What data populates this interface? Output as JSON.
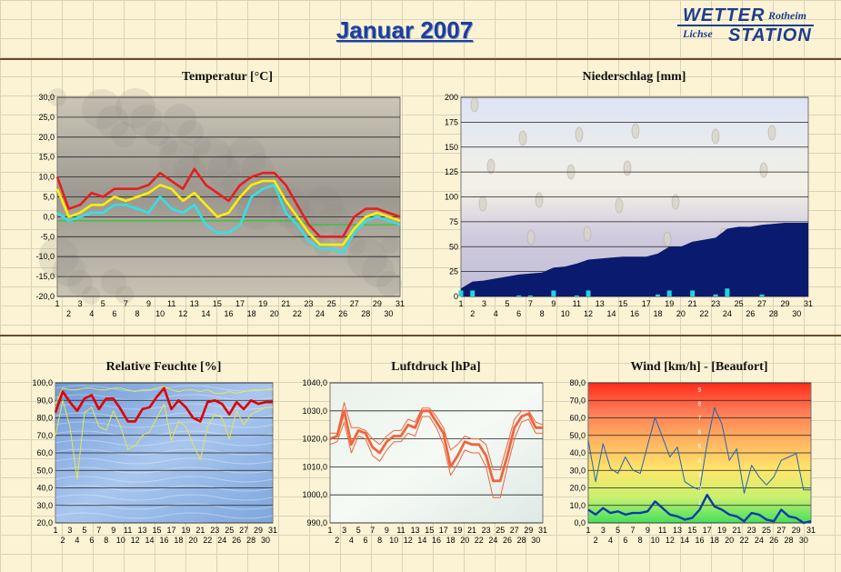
{
  "header": {
    "title": "Januar 2007",
    "logo": {
      "line1": "WETTER",
      "line2": "Rotheim",
      "line3": "Lichse",
      "line4": "STATION"
    }
  },
  "colors": {
    "temp_max": "#e61e1e",
    "temp_avg": "#ffee00",
    "temp_min": "#33e0e8",
    "dewpoint": "#22cc22",
    "precip_area": "#0a1a6e",
    "precip_bar": "#22d4e0",
    "humidity_avg": "#e00000",
    "humidity_range": "#e8e84a",
    "pressure": "#f0643c",
    "wind": "#1e64b4"
  },
  "days": [
    "1",
    "2",
    "3",
    "4",
    "5",
    "6",
    "7",
    "8",
    "9",
    "10",
    "11",
    "12",
    "13",
    "14",
    "15",
    "16",
    "17",
    "18",
    "19",
    "20",
    "21",
    "22",
    "23",
    "24",
    "25",
    "26",
    "27",
    "28",
    "29",
    "30",
    "31"
  ],
  "chart_data": [
    {
      "type": "line",
      "title": "Temperatur [°C]",
      "ylim": [
        -20,
        30
      ],
      "yticks": [
        "30,0",
        "25,0",
        "20,0",
        "15,0",
        "10,0",
        "5,0",
        "0,0",
        "-5,0",
        "-10,0",
        "-15,0",
        "-20,0"
      ],
      "x": [
        "1",
        "2",
        "3",
        "4",
        "5",
        "6",
        "7",
        "8",
        "9",
        "10",
        "11",
        "12",
        "13",
        "14",
        "15",
        "16",
        "17",
        "18",
        "19",
        "20",
        "21",
        "22",
        "23",
        "24",
        "25",
        "26",
        "27",
        "28",
        "29",
        "30",
        "31"
      ],
      "series": [
        {
          "key": "max",
          "values": [
            10,
            2,
            3,
            6,
            5,
            7,
            7,
            7,
            8,
            11,
            9,
            7,
            12,
            8,
            6,
            4,
            8,
            10,
            11,
            11,
            8,
            3,
            -2,
            -5,
            -5,
            -5,
            0,
            2,
            2,
            1,
            0
          ]
        },
        {
          "key": "avg",
          "values": [
            7,
            0,
            1,
            3,
            3,
            5,
            4,
            5,
            6,
            8,
            7,
            4,
            6,
            3,
            0,
            1,
            5,
            8,
            9,
            9,
            4,
            0,
            -4,
            -7,
            -7,
            -7,
            -3,
            0,
            1,
            0,
            -1
          ]
        },
        {
          "key": "min",
          "values": [
            1,
            -1,
            0,
            1,
            1,
            3,
            3,
            2,
            1,
            5,
            2,
            1,
            3,
            -2,
            -4,
            -4,
            -2,
            5,
            7,
            8,
            1,
            -2,
            -6,
            -8,
            -8,
            -9,
            -4,
            -1,
            0,
            -1,
            -2
          ]
        },
        {
          "key": "dewpoint",
          "values": [
            -1,
            -1,
            -1,
            -1,
            -1,
            -1,
            -1,
            -1,
            -1,
            -1,
            -1,
            -1,
            -1,
            -1,
            -1,
            -1,
            -1,
            -1,
            -1,
            -1,
            -1,
            -1,
            -2,
            -2,
            -2,
            -2,
            -2,
            -2,
            -2,
            -2,
            -2
          ]
        }
      ]
    },
    {
      "type": "area",
      "title": "Niederschlag [mm]",
      "ylim": [
        0,
        200
      ],
      "yticks": [
        "200",
        "175",
        "150",
        "125",
        "100",
        "75",
        "50",
        "25",
        "0"
      ],
      "x": [
        "1",
        "2",
        "3",
        "4",
        "5",
        "6",
        "7",
        "8",
        "9",
        "10",
        "11",
        "12",
        "13",
        "14",
        "15",
        "16",
        "17",
        "18",
        "19",
        "20",
        "21",
        "22",
        "23",
        "24",
        "25",
        "26",
        "27",
        "28",
        "29",
        "30",
        "31"
      ],
      "cumulative": [
        8,
        15,
        16,
        18,
        20,
        22,
        23,
        24,
        29,
        30,
        33,
        37,
        38,
        39,
        40,
        40,
        40,
        43,
        50,
        50,
        55,
        57,
        59,
        68,
        70,
        70,
        72,
        73,
        74,
        74,
        74
      ],
      "daily": [
        6,
        6,
        0,
        0,
        0,
        1,
        1,
        0,
        6,
        0,
        1,
        6,
        0,
        0,
        0,
        0,
        0,
        2,
        6,
        0,
        6,
        0,
        2,
        8,
        0,
        0,
        2,
        0,
        0,
        0,
        0
      ]
    },
    {
      "type": "line",
      "title": "Relative Feuchte [%]",
      "ylim": [
        20,
        100
      ],
      "yticks": [
        "100,0",
        "90,0",
        "80,0",
        "70,0",
        "60,0",
        "50,0",
        "40,0",
        "30,0",
        "20,0"
      ],
      "x": [
        "1",
        "2",
        "3",
        "4",
        "5",
        "6",
        "7",
        "8",
        "9",
        "10",
        "11",
        "12",
        "13",
        "14",
        "15",
        "16",
        "17",
        "18",
        "19",
        "20",
        "21",
        "22",
        "23",
        "24",
        "25",
        "26",
        "27",
        "28",
        "29",
        "30",
        "31"
      ],
      "series": [
        {
          "key": "max",
          "values": [
            88,
            97,
            96,
            96,
            97,
            97,
            96,
            96,
            97,
            97,
            96,
            95,
            96,
            96,
            97,
            98,
            96,
            95,
            96,
            96,
            95,
            96,
            94,
            94,
            95,
            94,
            95,
            96,
            96,
            96,
            96
          ]
        },
        {
          "key": "avg",
          "values": [
            83,
            95,
            89,
            84,
            91,
            93,
            85,
            91,
            91,
            85,
            78,
            78,
            85,
            86,
            92,
            97,
            85,
            90,
            86,
            80,
            78,
            89,
            90,
            88,
            82,
            89,
            85,
            90,
            88,
            89,
            89
          ]
        },
        {
          "key": "min",
          "values": [
            70,
            90,
            75,
            45,
            83,
            86,
            75,
            73,
            84,
            75,
            62,
            64,
            70,
            72,
            80,
            88,
            67,
            78,
            75,
            65,
            56,
            75,
            82,
            80,
            68,
            84,
            76,
            82,
            84,
            86,
            86
          ]
        }
      ]
    },
    {
      "type": "line",
      "title": "Luftdruck [hPa]",
      "ylim": [
        990,
        1040
      ],
      "yticks": [
        "1040,0",
        "1030,0",
        "1020,0",
        "1010,0",
        "1000,0",
        "990,0"
      ],
      "x": [
        "1",
        "2",
        "3",
        "4",
        "5",
        "6",
        "7",
        "8",
        "9",
        "10",
        "11",
        "12",
        "13",
        "14",
        "15",
        "16",
        "17",
        "18",
        "19",
        "20",
        "21",
        "22",
        "23",
        "24",
        "25",
        "26",
        "27",
        "28",
        "29",
        "30",
        "31"
      ],
      "series": [
        {
          "key": "max",
          "values": [
            1022,
            1022,
            1033,
            1024,
            1024,
            1023,
            1020,
            1018,
            1021,
            1023,
            1023,
            1027,
            1026,
            1031,
            1031,
            1028,
            1024,
            1016,
            1018,
            1021,
            1020,
            1020,
            1018,
            1009,
            1009,
            1018,
            1027,
            1030,
            1030,
            1026,
            1025
          ]
        },
        {
          "key": "avg",
          "values": [
            1020,
            1021,
            1030,
            1018,
            1023,
            1022,
            1017,
            1015,
            1019,
            1021,
            1021,
            1025,
            1024,
            1030,
            1030,
            1026,
            1022,
            1010,
            1014,
            1019,
            1018,
            1018,
            1014,
            1005,
            1005,
            1014,
            1024,
            1028,
            1029,
            1024,
            1024
          ]
        },
        {
          "key": "min",
          "values": [
            1018,
            1019,
            1026,
            1015,
            1021,
            1020,
            1014,
            1012,
            1016,
            1019,
            1019,
            1022,
            1021,
            1028,
            1028,
            1024,
            1018,
            1007,
            1011,
            1016,
            1015,
            1015,
            1010,
            999,
            999,
            1010,
            1020,
            1026,
            1027,
            1022,
            1022
          ]
        }
      ]
    },
    {
      "type": "line",
      "title": "Wind [km/h] - [Beaufort]",
      "ylim": [
        0,
        85
      ],
      "yticks": [
        "80,0",
        "70,0",
        "60,0",
        "50,0",
        "40,0",
        "30,0",
        "20,0",
        "10,0",
        "0,0"
      ],
      "beaufort": [
        "9",
        "8",
        "7",
        "6",
        "5",
        "4",
        "3",
        "2",
        "1"
      ],
      "x": [
        "1",
        "2",
        "3",
        "4",
        "5",
        "6",
        "7",
        "8",
        "9",
        "10",
        "11",
        "12",
        "13",
        "14",
        "15",
        "16",
        "17",
        "18",
        "19",
        "20",
        "21",
        "22",
        "23",
        "24",
        "25",
        "26",
        "27",
        "28",
        "29",
        "30",
        "31"
      ],
      "series": [
        {
          "key": "gust",
          "values": [
            50,
            25,
            48,
            33,
            30,
            40,
            32,
            30,
            47,
            64,
            52,
            40,
            46,
            25,
            22,
            20,
            48,
            70,
            60,
            38,
            45,
            18,
            35,
            28,
            23,
            28,
            38,
            40,
            42,
            20,
            20
          ]
        },
        {
          "key": "avg",
          "values": [
            8,
            5,
            9,
            6,
            7,
            5,
            6,
            6,
            7,
            13,
            9,
            5,
            4,
            2,
            3,
            8,
            17,
            10,
            8,
            5,
            4,
            1,
            6,
            5,
            2,
            1,
            8,
            4,
            3,
            0,
            1
          ]
        }
      ]
    }
  ]
}
